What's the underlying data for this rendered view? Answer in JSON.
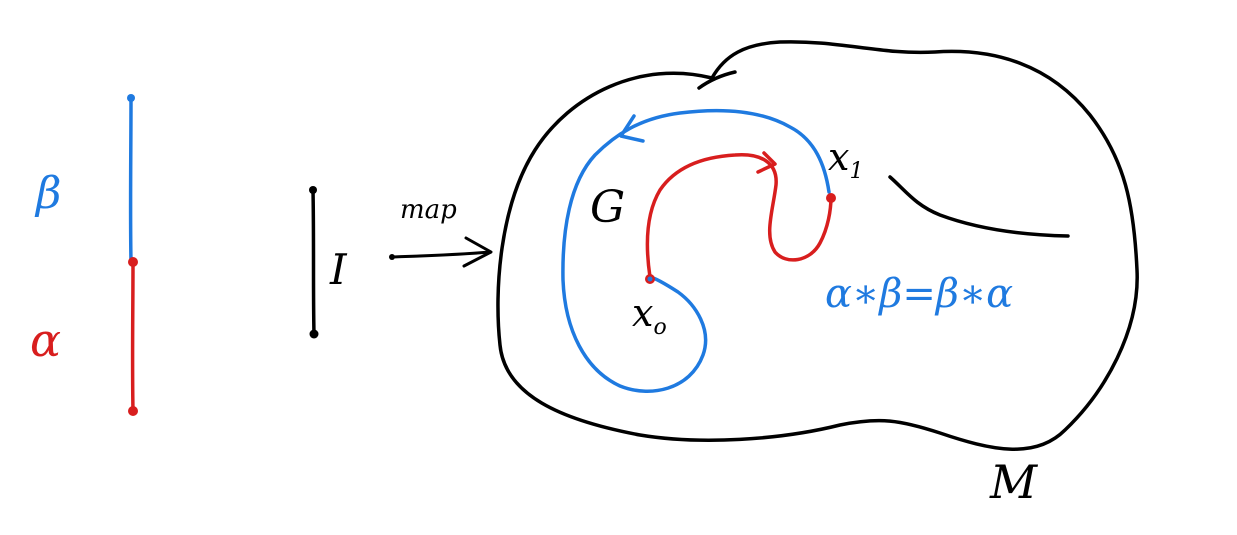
{
  "colors": {
    "ink": "#000000",
    "blue": "#1f7ae0",
    "red": "#d81e1e"
  },
  "labels": {
    "beta": "β",
    "alpha": "α",
    "interval": "I",
    "map": "map",
    "loop": "G",
    "x0_base": "x",
    "x0_sub": "o",
    "x1_base": "x",
    "x1_sub": "1",
    "equation": "α∗β=β∗α",
    "manifold": "M"
  }
}
